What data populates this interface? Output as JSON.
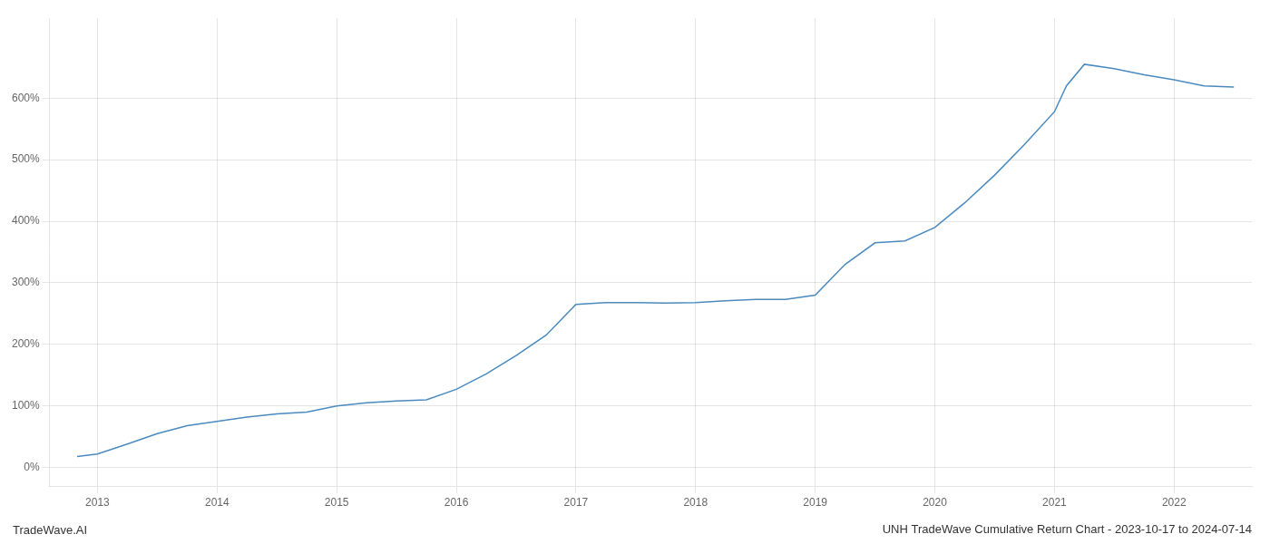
{
  "chart_data": {
    "type": "line",
    "title": "UNH TradeWave Cumulative Return Chart - 2023-10-17 to 2024-07-14",
    "annotations": [
      "TradeWave.AI"
    ],
    "color": "#4a8abf",
    "x": [
      2012.83,
      2013.0,
      2013.25,
      2013.5,
      2013.75,
      2014.0,
      2014.25,
      2014.5,
      2014.75,
      2015.0,
      2015.25,
      2015.5,
      2015.75,
      2016.0,
      2016.25,
      2016.5,
      2016.75,
      2017.0,
      2017.25,
      2017.5,
      2017.75,
      2018.0,
      2018.25,
      2018.5,
      2018.75,
      2019.0,
      2019.25,
      2019.5,
      2019.75,
      2020.0,
      2020.25,
      2020.5,
      2020.75,
      2021.0,
      2021.1,
      2021.25,
      2021.5,
      2021.75,
      2022.0,
      2022.25,
      2022.5
    ],
    "values": [
      18,
      22,
      38,
      55,
      68,
      75,
      82,
      87,
      90,
      100,
      105,
      108,
      110,
      127,
      152,
      182,
      215,
      265,
      268,
      268,
      267,
      268,
      271,
      273,
      273,
      280,
      330,
      365,
      368,
      390,
      430,
      475,
      525,
      578,
      620,
      655,
      648,
      638,
      630,
      620,
      618
    ],
    "xlim": [
      2012.6,
      2022.65
    ],
    "ylim": [
      -30,
      730
    ],
    "xticks": [
      2013,
      2014,
      2015,
      2016,
      2017,
      2018,
      2019,
      2020,
      2021,
      2022
    ],
    "yticks": [
      {
        "value": 0,
        "label": "0%"
      },
      {
        "value": 100,
        "label": "100%"
      },
      {
        "value": 200,
        "label": "200%"
      },
      {
        "value": 300,
        "label": "300%"
      },
      {
        "value": 400,
        "label": "400%"
      },
      {
        "value": 500,
        "label": "500%"
      },
      {
        "value": 600,
        "label": "600%"
      }
    ],
    "grid": true
  }
}
